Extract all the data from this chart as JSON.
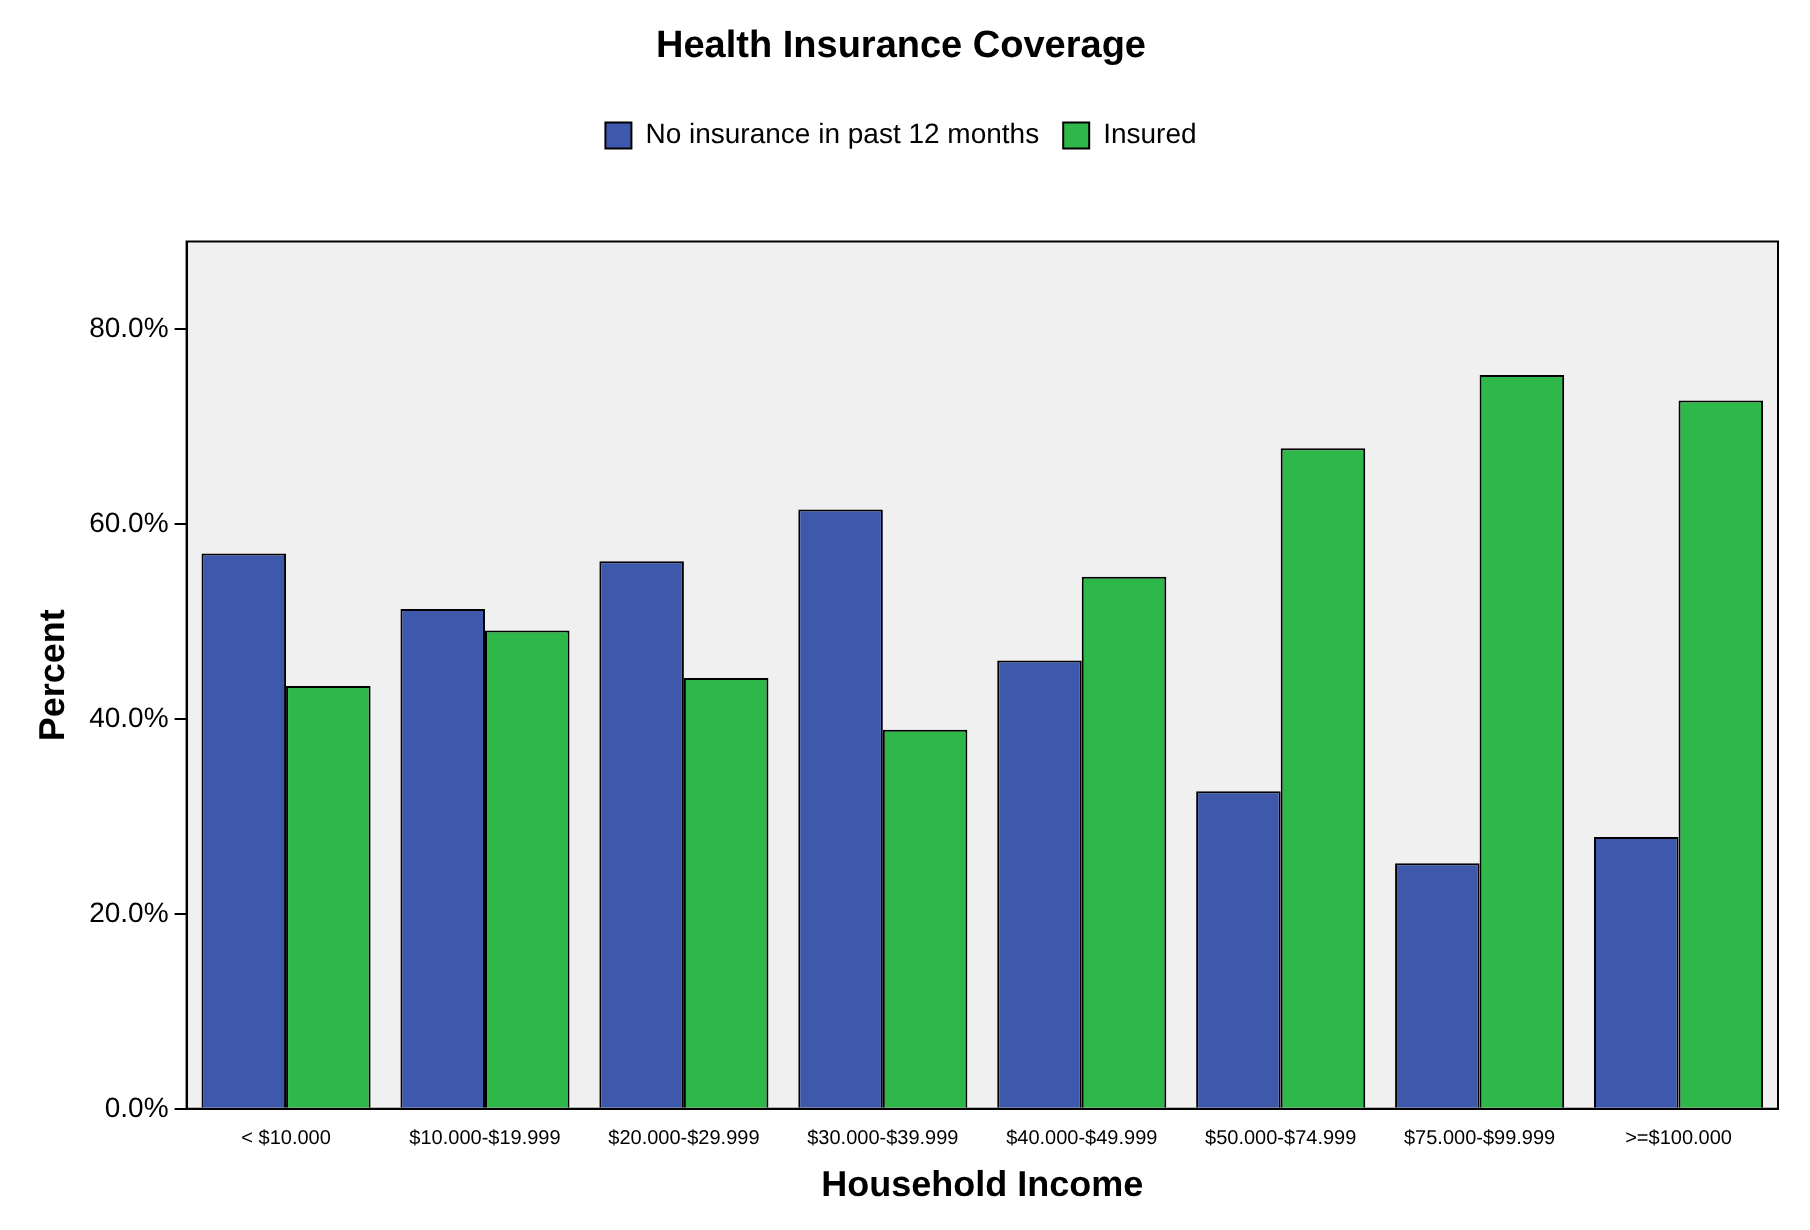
{
  "chart_data": {
    "type": "bar",
    "title": "Health Insurance Coverage",
    "xlabel": "Household Income",
    "ylabel": "Percent",
    "categories": [
      "< $10.000",
      "$10.000-$19.999",
      "$20.000-$29.999",
      "$30.000-$39.999",
      "$40.000-$49.999",
      "$50.000-$74.999",
      "$75.000-$99.999",
      ">=$100.000"
    ],
    "series": [
      {
        "name": "No insurance in past 12 months",
        "color": "#3e58ac",
        "values": [
          57.0,
          51.3,
          56.2,
          61.5,
          46.0,
          32.6,
          25.2,
          27.9
        ]
      },
      {
        "name": "Insured",
        "color": "#2eb84a",
        "values": [
          43.4,
          49.1,
          44.2,
          38.9,
          54.6,
          67.8,
          75.3,
          72.7
        ]
      }
    ],
    "ylim": [
      0,
      89
    ],
    "yticks": [
      {
        "value": 0,
        "label": "0.0%"
      },
      {
        "value": 20,
        "label": "20.0%"
      },
      {
        "value": 40,
        "label": "40.0%"
      },
      {
        "value": 60,
        "label": "60.0%"
      },
      {
        "value": 80,
        "label": "80.0%"
      }
    ],
    "grid": false,
    "legend": "top"
  }
}
